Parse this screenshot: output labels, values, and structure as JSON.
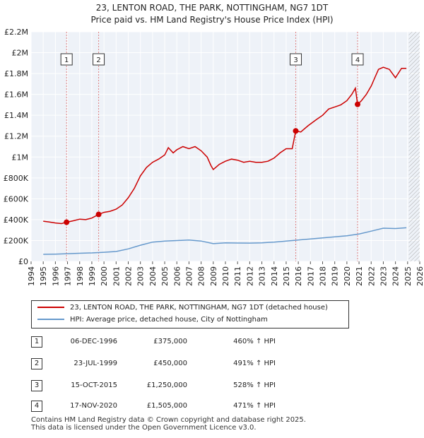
{
  "header": {
    "title": "23, LENTON ROAD, THE PARK, NOTTINGHAM, NG7 1DT",
    "subtitle": "Price paid vs. HM Land Registry's House Price Index (HPI)"
  },
  "chart_data": {
    "type": "line",
    "xlim": [
      1994,
      2026
    ],
    "ylim": [
      0,
      2200000
    ],
    "x_ticks": [
      "1994",
      "1995",
      "1996",
      "1997",
      "1998",
      "1999",
      "2000",
      "2001",
      "2002",
      "2003",
      "2004",
      "2005",
      "2006",
      "2007",
      "2008",
      "2009",
      "2010",
      "2011",
      "2012",
      "2013",
      "2014",
      "2015",
      "2016",
      "2017",
      "2018",
      "2019",
      "2020",
      "2021",
      "2022",
      "2023",
      "2024",
      "2025",
      "2026"
    ],
    "y_ticks": [
      {
        "value": 0,
        "label": "£0"
      },
      {
        "value": 200000,
        "label": "£200K"
      },
      {
        "value": 400000,
        "label": "£400K"
      },
      {
        "value": 600000,
        "label": "£600K"
      },
      {
        "value": 800000,
        "label": "£800K"
      },
      {
        "value": 1000000,
        "label": "£1M"
      },
      {
        "value": 1200000,
        "label": "£1.2M"
      },
      {
        "value": 1400000,
        "label": "£1.4M"
      },
      {
        "value": 1600000,
        "label": "£1.6M"
      },
      {
        "value": 1800000,
        "label": "£1.8M"
      },
      {
        "value": 2000000,
        "label": "£2M"
      },
      {
        "value": 2200000,
        "label": "£2.2M"
      }
    ],
    "grid": true,
    "future_hatch_from": 2025.1,
    "series": [
      {
        "name": "23, LENTON ROAD, THE PARK, NOTTINGHAM, NG7 1DT (detached house)",
        "color": "#cc0000",
        "points": [
          [
            1995.0,
            385000
          ],
          [
            1995.5,
            378000
          ],
          [
            1996.0,
            368000
          ],
          [
            1996.5,
            362000
          ],
          [
            1996.92,
            375000
          ],
          [
            1997.5,
            390000
          ],
          [
            1998.0,
            405000
          ],
          [
            1998.5,
            400000
          ],
          [
            1999.0,
            415000
          ],
          [
            1999.56,
            450000
          ],
          [
            2000.0,
            470000
          ],
          [
            2000.5,
            480000
          ],
          [
            2001.0,
            500000
          ],
          [
            2001.5,
            540000
          ],
          [
            2002.0,
            610000
          ],
          [
            2002.5,
            700000
          ],
          [
            2003.0,
            820000
          ],
          [
            2003.5,
            900000
          ],
          [
            2004.0,
            950000
          ],
          [
            2004.5,
            980000
          ],
          [
            2005.0,
            1020000
          ],
          [
            2005.3,
            1090000
          ],
          [
            2005.7,
            1040000
          ],
          [
            2006.0,
            1070000
          ],
          [
            2006.5,
            1100000
          ],
          [
            2007.0,
            1080000
          ],
          [
            2007.5,
            1100000
          ],
          [
            2008.0,
            1060000
          ],
          [
            2008.5,
            1000000
          ],
          [
            2008.8,
            920000
          ],
          [
            2009.0,
            880000
          ],
          [
            2009.5,
            930000
          ],
          [
            2010.0,
            960000
          ],
          [
            2010.5,
            980000
          ],
          [
            2011.0,
            970000
          ],
          [
            2011.5,
            950000
          ],
          [
            2012.0,
            960000
          ],
          [
            2012.5,
            950000
          ],
          [
            2013.0,
            950000
          ],
          [
            2013.5,
            960000
          ],
          [
            2014.0,
            990000
          ],
          [
            2014.5,
            1040000
          ],
          [
            2015.0,
            1080000
          ],
          [
            2015.5,
            1080000
          ],
          [
            2015.79,
            1250000
          ],
          [
            2016.2,
            1240000
          ],
          [
            2016.8,
            1300000
          ],
          [
            2017.5,
            1360000
          ],
          [
            2018.0,
            1400000
          ],
          [
            2018.5,
            1460000
          ],
          [
            2019.0,
            1480000
          ],
          [
            2019.5,
            1500000
          ],
          [
            2020.0,
            1540000
          ],
          [
            2020.4,
            1600000
          ],
          [
            2020.7,
            1660000
          ],
          [
            2020.88,
            1505000
          ],
          [
            2021.2,
            1540000
          ],
          [
            2021.6,
            1600000
          ],
          [
            2022.0,
            1680000
          ],
          [
            2022.3,
            1760000
          ],
          [
            2022.6,
            1840000
          ],
          [
            2023.0,
            1860000
          ],
          [
            2023.5,
            1840000
          ],
          [
            2024.0,
            1760000
          ],
          [
            2024.5,
            1850000
          ],
          [
            2024.9,
            1850000
          ]
        ]
      },
      {
        "name": "HPI: Average price, detached house, City of Nottingham",
        "color": "#6699cc",
        "points": [
          [
            1995.0,
            68000
          ],
          [
            1996.0,
            70000
          ],
          [
            1997.0,
            74000
          ],
          [
            1998.0,
            78000
          ],
          [
            1999.0,
            81000
          ],
          [
            2000.0,
            87000
          ],
          [
            2001.0,
            95000
          ],
          [
            2002.0,
            120000
          ],
          [
            2003.0,
            155000
          ],
          [
            2004.0,
            185000
          ],
          [
            2005.0,
            195000
          ],
          [
            2006.0,
            200000
          ],
          [
            2007.0,
            205000
          ],
          [
            2008.0,
            195000
          ],
          [
            2009.0,
            170000
          ],
          [
            2010.0,
            178000
          ],
          [
            2011.0,
            176000
          ],
          [
            2012.0,
            175000
          ],
          [
            2013.0,
            178000
          ],
          [
            2014.0,
            185000
          ],
          [
            2015.0,
            195000
          ],
          [
            2016.0,
            205000
          ],
          [
            2017.0,
            215000
          ],
          [
            2018.0,
            225000
          ],
          [
            2019.0,
            235000
          ],
          [
            2020.0,
            245000
          ],
          [
            2021.0,
            262000
          ],
          [
            2022.0,
            290000
          ],
          [
            2023.0,
            318000
          ],
          [
            2024.0,
            315000
          ],
          [
            2024.9,
            322000
          ]
        ]
      }
    ],
    "sales": [
      {
        "id": "1",
        "x": 1996.92,
        "price": 375000,
        "date": "06-DEC-1996",
        "price_label": "£375,000",
        "hpi": "460% ↑ HPI"
      },
      {
        "id": "2",
        "x": 1999.56,
        "price": 450000,
        "date": "23-JUL-1999",
        "price_label": "£450,000",
        "hpi": "491% ↑ HPI"
      },
      {
        "id": "3",
        "x": 2015.79,
        "price": 1250000,
        "date": "15-OCT-2015",
        "price_label": "£1,250,000",
        "hpi": "528% ↑ HPI"
      },
      {
        "id": "4",
        "x": 2020.88,
        "price": 1505000,
        "date": "17-NOV-2020",
        "price_label": "£1,505,000",
        "hpi": "471% ↑ HPI"
      }
    ]
  },
  "legend": {
    "property": "23, LENTON ROAD, THE PARK, NOTTINGHAM, NG7 1DT (detached house)",
    "hpi": "HPI: Average price, detached house, City of Nottingham",
    "property_color": "#cc0000",
    "hpi_color": "#6699cc"
  },
  "footer": {
    "line1": "Contains HM Land Registry data © Crown copyright and database right 2025.",
    "line2": "This data is licensed under the Open Government Licence v3.0."
  }
}
